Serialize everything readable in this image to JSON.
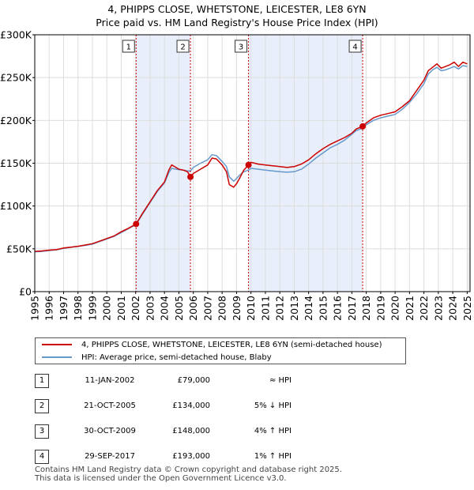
{
  "title_line1": "4, PHIPPS CLOSE, WHETSTONE, LEICESTER, LE8 6YN",
  "title_line2": "Price paid vs. HM Land Registry's House Price Index (HPI)",
  "colors": {
    "property": "#cc0000",
    "hpi": "#6699cc",
    "shade": "#e8eefa",
    "marker_line": "#cc0000"
  },
  "legend": {
    "property_label": "4, PHIPPS CLOSE, WHETSTONE, LEICESTER, LE8 6YN (semi-detached house)",
    "hpi_label": "HPI: Average price, semi-detached house, Blaby"
  },
  "sales": [
    {
      "num": "1",
      "date": "11-JAN-2002",
      "price": "£79,000",
      "hpi_rel": "≈ HPI"
    },
    {
      "num": "2",
      "date": "21-OCT-2005",
      "price": "£134,000",
      "hpi_rel": "5% ↓ HPI"
    },
    {
      "num": "3",
      "date": "30-OCT-2009",
      "price": "£148,000",
      "hpi_rel": "4% ↑ HPI"
    },
    {
      "num": "4",
      "date": "29-SEP-2017",
      "price": "£193,000",
      "hpi_rel": "1% ↑ HPI"
    }
  ],
  "footer_line1": "Contains HM Land Registry data © Crown copyright and database right 2025.",
  "footer_line2": "This data is licensed under the Open Government Licence v3.0.",
  "chart_data": {
    "type": "line",
    "title": "Price paid vs. HM Land Registry's House Price Index (HPI)",
    "xlim": [
      1995,
      2025.2
    ],
    "ylim": [
      0,
      300000
    ],
    "yticks": [
      0,
      50000,
      100000,
      150000,
      200000,
      250000,
      300000
    ],
    "ytick_labels": [
      "£0",
      "£50K",
      "£100K",
      "£150K",
      "£200K",
      "£250K",
      "£300K"
    ],
    "xticks": [
      1995,
      1996,
      1997,
      1998,
      1999,
      2000,
      2001,
      2002,
      2003,
      2004,
      2005,
      2006,
      2007,
      2008,
      2009,
      2010,
      2011,
      2012,
      2013,
      2014,
      2015,
      2016,
      2017,
      2018,
      2019,
      2020,
      2021,
      2022,
      2023,
      2024,
      2025
    ],
    "shaded_periods": [
      [
        2002.03,
        2005.8
      ],
      [
        2009.83,
        2017.75
      ]
    ],
    "sale_markers": [
      {
        "label": "1",
        "x": 2002.03,
        "y": 79000
      },
      {
        "label": "2",
        "x": 2005.8,
        "y": 134000
      },
      {
        "label": "3",
        "x": 2009.83,
        "y": 148000
      },
      {
        "label": "4",
        "x": 2017.75,
        "y": 193000
      }
    ],
    "series": [
      {
        "name": "4, PHIPPS CLOSE, WHETSTONE, LEICESTER, LE8 6YN (semi-detached house)",
        "x": [
          1995,
          1995.5,
          1996,
          1996.5,
          1997,
          1997.5,
          1998,
          1998.5,
          1999,
          1999.5,
          2000,
          2000.5,
          2001,
          2001.5,
          2002.03,
          2002.5,
          2003,
          2003.5,
          2004,
          2004.3,
          2004.5,
          2004.8,
          2005,
          2005.3,
          2005.6,
          2005.8,
          2006,
          2006.5,
          2007,
          2007.3,
          2007.6,
          2008,
          2008.3,
          2008.5,
          2008.8,
          2009,
          2009.2,
          2009.5,
          2009.83,
          2010,
          2010.5,
          2011,
          2011.5,
          2012,
          2012.5,
          2013,
          2013.5,
          2014,
          2014.5,
          2015,
          2015.5,
          2016,
          2016.5,
          2017,
          2017.3,
          2017.75,
          2018,
          2018.5,
          2019,
          2019.5,
          2020,
          2020.5,
          2021,
          2021.5,
          2022,
          2022.3,
          2022.6,
          2022.9,
          2023.2,
          2023.5,
          2023.8,
          2024.1,
          2024.4,
          2024.7,
          2025
        ],
        "y": [
          47000,
          47500,
          48500,
          49000,
          51000,
          52000,
          53000,
          54500,
          56000,
          59000,
          62000,
          65000,
          70000,
          74000,
          79000,
          92000,
          105000,
          118000,
          128000,
          142000,
          148000,
          145000,
          143000,
          142000,
          140000,
          134000,
          138000,
          143000,
          148000,
          156000,
          155000,
          148000,
          140000,
          125000,
          122000,
          126000,
          132000,
          142000,
          148000,
          151000,
          149000,
          148000,
          147000,
          146000,
          145000,
          146000,
          149000,
          154000,
          161000,
          167000,
          172000,
          176000,
          180000,
          185000,
          190000,
          193000,
          197000,
          203000,
          206000,
          208000,
          210000,
          216000,
          223000,
          235000,
          247000,
          258000,
          262000,
          266000,
          261000,
          263000,
          265000,
          268000,
          263000,
          268000,
          266000
        ]
      },
      {
        "name": "HPI: Average price, semi-detached house, Blaby",
        "x": [
          1995,
          1995.5,
          1996,
          1996.5,
          1997,
          1997.5,
          1998,
          1998.5,
          1999,
          1999.5,
          2000,
          2000.5,
          2001,
          2001.5,
          2002.03,
          2002.5,
          2003,
          2003.5,
          2004,
          2004.3,
          2004.5,
          2004.8,
          2005,
          2005.3,
          2005.6,
          2005.8,
          2006,
          2006.5,
          2007,
          2007.3,
          2007.6,
          2008,
          2008.3,
          2008.5,
          2008.8,
          2009,
          2009.2,
          2009.5,
          2009.83,
          2010,
          2010.5,
          2011,
          2011.5,
          2012,
          2012.5,
          2013,
          2013.5,
          2014,
          2014.5,
          2015,
          2015.5,
          2016,
          2016.5,
          2017,
          2017.3,
          2017.75,
          2018,
          2018.5,
          2019,
          2019.5,
          2020,
          2020.5,
          2021,
          2021.5,
          2022,
          2022.3,
          2022.6,
          2022.9,
          2023.2,
          2023.5,
          2023.8,
          2024.1,
          2024.4,
          2024.7,
          2025
        ],
        "y": [
          46500,
          47000,
          48000,
          48800,
          50500,
          51800,
          52800,
          54000,
          55500,
          58500,
          61500,
          64500,
          69000,
          73500,
          78500,
          91000,
          104000,
          117000,
          127000,
          139000,
          144000,
          143000,
          142500,
          142000,
          141000,
          141000,
          145000,
          150000,
          154000,
          160000,
          159000,
          152000,
          146000,
          134000,
          129000,
          132000,
          136000,
          140000,
          142000,
          144000,
          143000,
          142000,
          141000,
          140000,
          139500,
          140000,
          143000,
          149000,
          156000,
          162000,
          168000,
          172000,
          177000,
          184000,
          188000,
          191000,
          195000,
          200000,
          203000,
          205000,
          207000,
          213000,
          221000,
          231000,
          243000,
          254000,
          259000,
          262000,
          258000,
          259000,
          261000,
          263000,
          260000,
          264000,
          263000
        ]
      }
    ]
  }
}
